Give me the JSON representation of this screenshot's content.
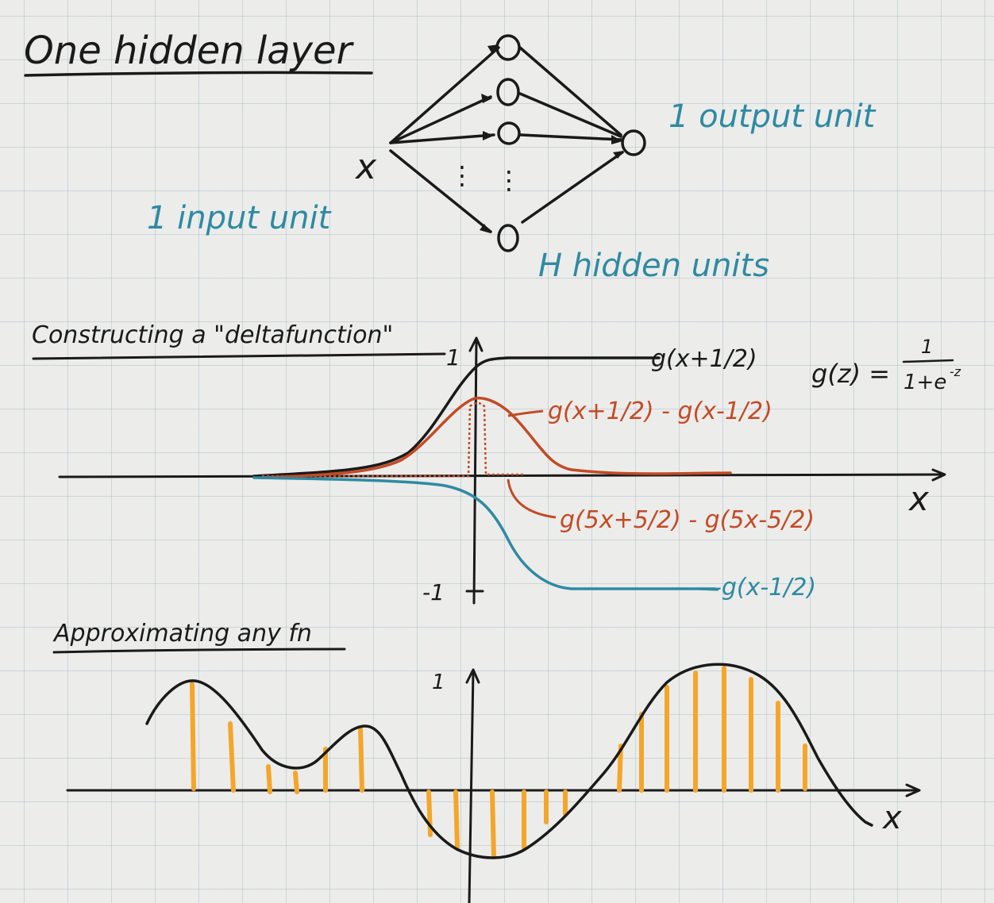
{
  "section1": {
    "title": "One hidden layer",
    "input_var": "x",
    "input_label": "1 input unit",
    "output_label": "1 output unit",
    "hidden_label": "H hidden units",
    "hidden_dots": "⋮"
  },
  "section2": {
    "title": "Constructing a \"deltafunction\"",
    "ytick_top": "1",
    "ytick_bottom": "-1",
    "x_axis_label": "x",
    "formula": "g(z) = 1 / (1+e^-z)",
    "formula_lhs": "g(z) =",
    "formula_num": "1",
    "formula_den": "1+e",
    "formula_exp": "-z",
    "labels": {
      "black": "g(x+1/2)",
      "red_wide": "g(x+1/2) - g(x-1/2)",
      "red_narrow": "g(5x+5/2) - g(5x-5/2)",
      "blue": "-g(x-1/2)"
    }
  },
  "section3": {
    "title": "Approximating any fn",
    "ytick_top": "1",
    "x_axis_label": "x"
  },
  "colors": {
    "ink": "#1a1a1a",
    "blue": "#2e8aa3",
    "red": "#c24b26",
    "orange": "#f4a62a"
  }
}
